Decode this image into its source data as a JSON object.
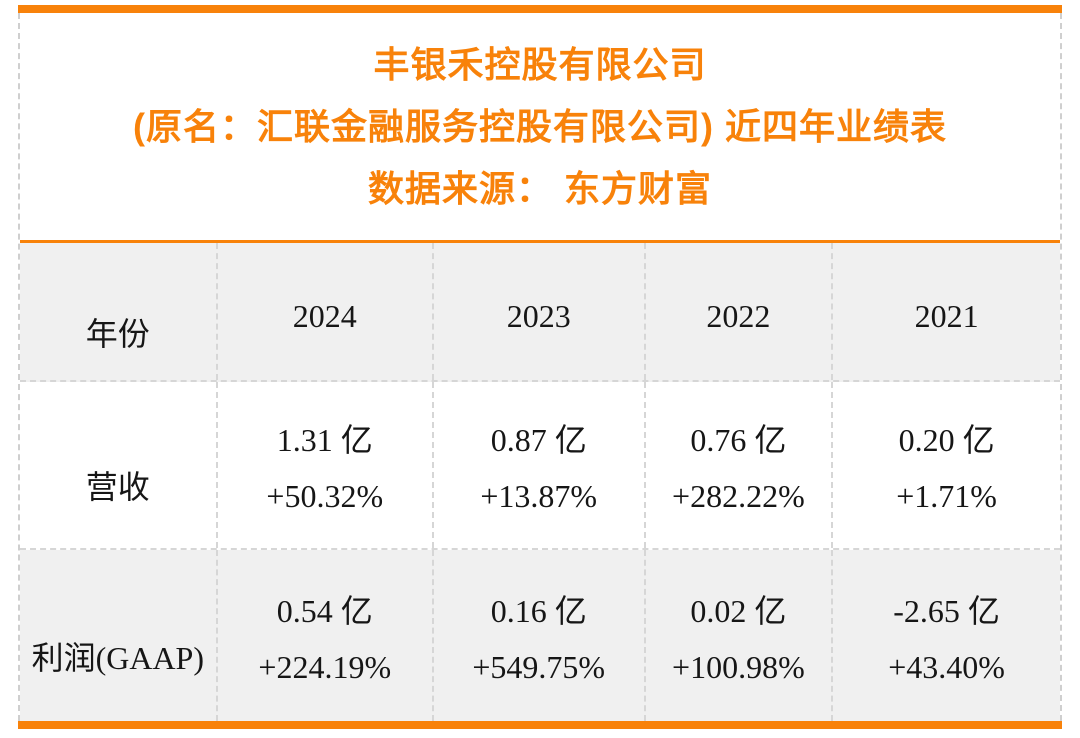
{
  "accent_color": "#F8820A",
  "header": {
    "title": "丰银禾控股有限公司",
    "subtitle": "(原名：汇联金融服务控股有限公司) 近四年业绩表",
    "source": "数据来源： 东方财富"
  },
  "table": {
    "corner_label": "年份",
    "years": [
      "2024",
      "2023",
      "2022",
      "2021"
    ],
    "rows": [
      {
        "label": "营收",
        "cells": [
          {
            "value": "1.31 亿",
            "change": "+50.32%"
          },
          {
            "value": "0.87 亿",
            "change": "+13.87%"
          },
          {
            "value": "0.76 亿",
            "change": "+282.22%"
          },
          {
            "value": "0.20 亿",
            "change": "+1.71%"
          }
        ]
      },
      {
        "label": "利润(GAAP)",
        "cells": [
          {
            "value": "0.54 亿",
            "change": "+224.19%"
          },
          {
            "value": "0.16 亿",
            "change": "+549.75%"
          },
          {
            "value": "0.02 亿",
            "change": "+100.98%"
          },
          {
            "value": "-2.65 亿",
            "change": "+43.40%"
          }
        ]
      }
    ]
  },
  "chart_data": {
    "type": "table",
    "title": "丰银禾控股有限公司",
    "subtitle": "(原名：汇联金融服务控股有限公司) 近四年业绩表",
    "source": "数据来源： 东方财富",
    "columns": [
      "年份",
      "2024",
      "2023",
      "2022",
      "2021"
    ],
    "unit": "亿",
    "rows": [
      {
        "label": "营收",
        "values_yi": [
          1.31,
          0.87,
          0.76,
          0.2
        ],
        "yoy_change_pct": [
          50.32,
          13.87,
          282.22,
          1.71
        ]
      },
      {
        "label": "利润(GAAP)",
        "values_yi": [
          0.54,
          0.16,
          0.02,
          -2.65
        ],
        "yoy_change_pct": [
          224.19,
          549.75,
          100.98,
          43.4
        ]
      }
    ]
  }
}
